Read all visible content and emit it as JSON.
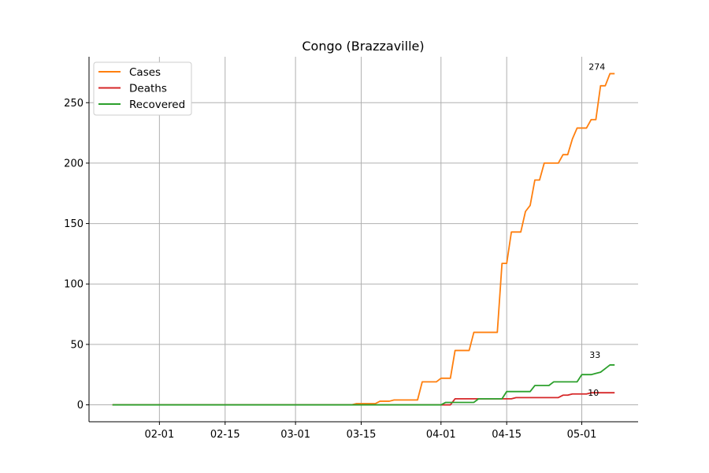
{
  "chart_data": {
    "type": "line",
    "title": "Congo (Brazzaville)",
    "xlabel": "",
    "ylabel": "",
    "x_start": "2020-01-22",
    "x_end": "2020-05-08",
    "xlim": [
      "2020-01-17",
      "2020-05-13"
    ],
    "ylim": [
      -14,
      288
    ],
    "x_ticks": [
      {
        "date": "2020-02-01",
        "label": "02-01"
      },
      {
        "date": "2020-02-15",
        "label": "02-15"
      },
      {
        "date": "2020-03-01",
        "label": "03-01"
      },
      {
        "date": "2020-03-15",
        "label": "03-15"
      },
      {
        "date": "2020-04-01",
        "label": "04-01"
      },
      {
        "date": "2020-04-15",
        "label": "04-15"
      },
      {
        "date": "2020-05-01",
        "label": "05-01"
      }
    ],
    "y_ticks": [
      0,
      50,
      100,
      150,
      200,
      250
    ],
    "grid": true,
    "legend_position": "top-left",
    "series": [
      {
        "name": "Cases",
        "color": "#ff7f0e",
        "points": [
          [
            "2020-01-22",
            0
          ],
          [
            "2020-03-13",
            0
          ],
          [
            "2020-03-14",
            1
          ],
          [
            "2020-03-18",
            1
          ],
          [
            "2020-03-19",
            3
          ],
          [
            "2020-03-21",
            3
          ],
          [
            "2020-03-22",
            4
          ],
          [
            "2020-03-27",
            4
          ],
          [
            "2020-03-28",
            19
          ],
          [
            "2020-03-31",
            19
          ],
          [
            "2020-04-01",
            22
          ],
          [
            "2020-04-03",
            22
          ],
          [
            "2020-04-04",
            45
          ],
          [
            "2020-04-07",
            45
          ],
          [
            "2020-04-08",
            60
          ],
          [
            "2020-04-13",
            60
          ],
          [
            "2020-04-14",
            117
          ],
          [
            "2020-04-15",
            117
          ],
          [
            "2020-04-16",
            143
          ],
          [
            "2020-04-18",
            143
          ],
          [
            "2020-04-19",
            160
          ],
          [
            "2020-04-20",
            165
          ],
          [
            "2020-04-21",
            186
          ],
          [
            "2020-04-22",
            186
          ],
          [
            "2020-04-23",
            200
          ],
          [
            "2020-04-26",
            200
          ],
          [
            "2020-04-27",
            207
          ],
          [
            "2020-04-28",
            207
          ],
          [
            "2020-04-29",
            220
          ],
          [
            "2020-04-30",
            229
          ],
          [
            "2020-05-02",
            229
          ],
          [
            "2020-05-03",
            236
          ],
          [
            "2020-05-04",
            236
          ],
          [
            "2020-05-05",
            264
          ],
          [
            "2020-05-06",
            264
          ],
          [
            "2020-05-07",
            274
          ],
          [
            "2020-05-08",
            274
          ]
        ],
        "end_label": "274"
      },
      {
        "name": "Deaths",
        "color": "#d62728",
        "points": [
          [
            "2020-01-22",
            0
          ],
          [
            "2020-04-03",
            0
          ],
          [
            "2020-04-04",
            5
          ],
          [
            "2020-04-16",
            5
          ],
          [
            "2020-04-17",
            6
          ],
          [
            "2020-04-26",
            6
          ],
          [
            "2020-04-27",
            8
          ],
          [
            "2020-04-28",
            8
          ],
          [
            "2020-04-29",
            9
          ],
          [
            "2020-05-02",
            9
          ],
          [
            "2020-05-03",
            10
          ],
          [
            "2020-05-08",
            10
          ]
        ],
        "end_label": "10"
      },
      {
        "name": "Recovered",
        "color": "#2ca02c",
        "points": [
          [
            "2020-01-22",
            0
          ],
          [
            "2020-04-01",
            0
          ],
          [
            "2020-04-02",
            2
          ],
          [
            "2020-04-08",
            2
          ],
          [
            "2020-04-09",
            5
          ],
          [
            "2020-04-14",
            5
          ],
          [
            "2020-04-15",
            11
          ],
          [
            "2020-04-20",
            11
          ],
          [
            "2020-04-21",
            16
          ],
          [
            "2020-04-24",
            16
          ],
          [
            "2020-04-25",
            19
          ],
          [
            "2020-04-30",
            19
          ],
          [
            "2020-05-01",
            25
          ],
          [
            "2020-05-03",
            25
          ],
          [
            "2020-05-04",
            26
          ],
          [
            "2020-05-05",
            27
          ],
          [
            "2020-05-06",
            30
          ],
          [
            "2020-05-07",
            33
          ],
          [
            "2020-05-08",
            33
          ]
        ],
        "end_label": "33"
      }
    ]
  }
}
